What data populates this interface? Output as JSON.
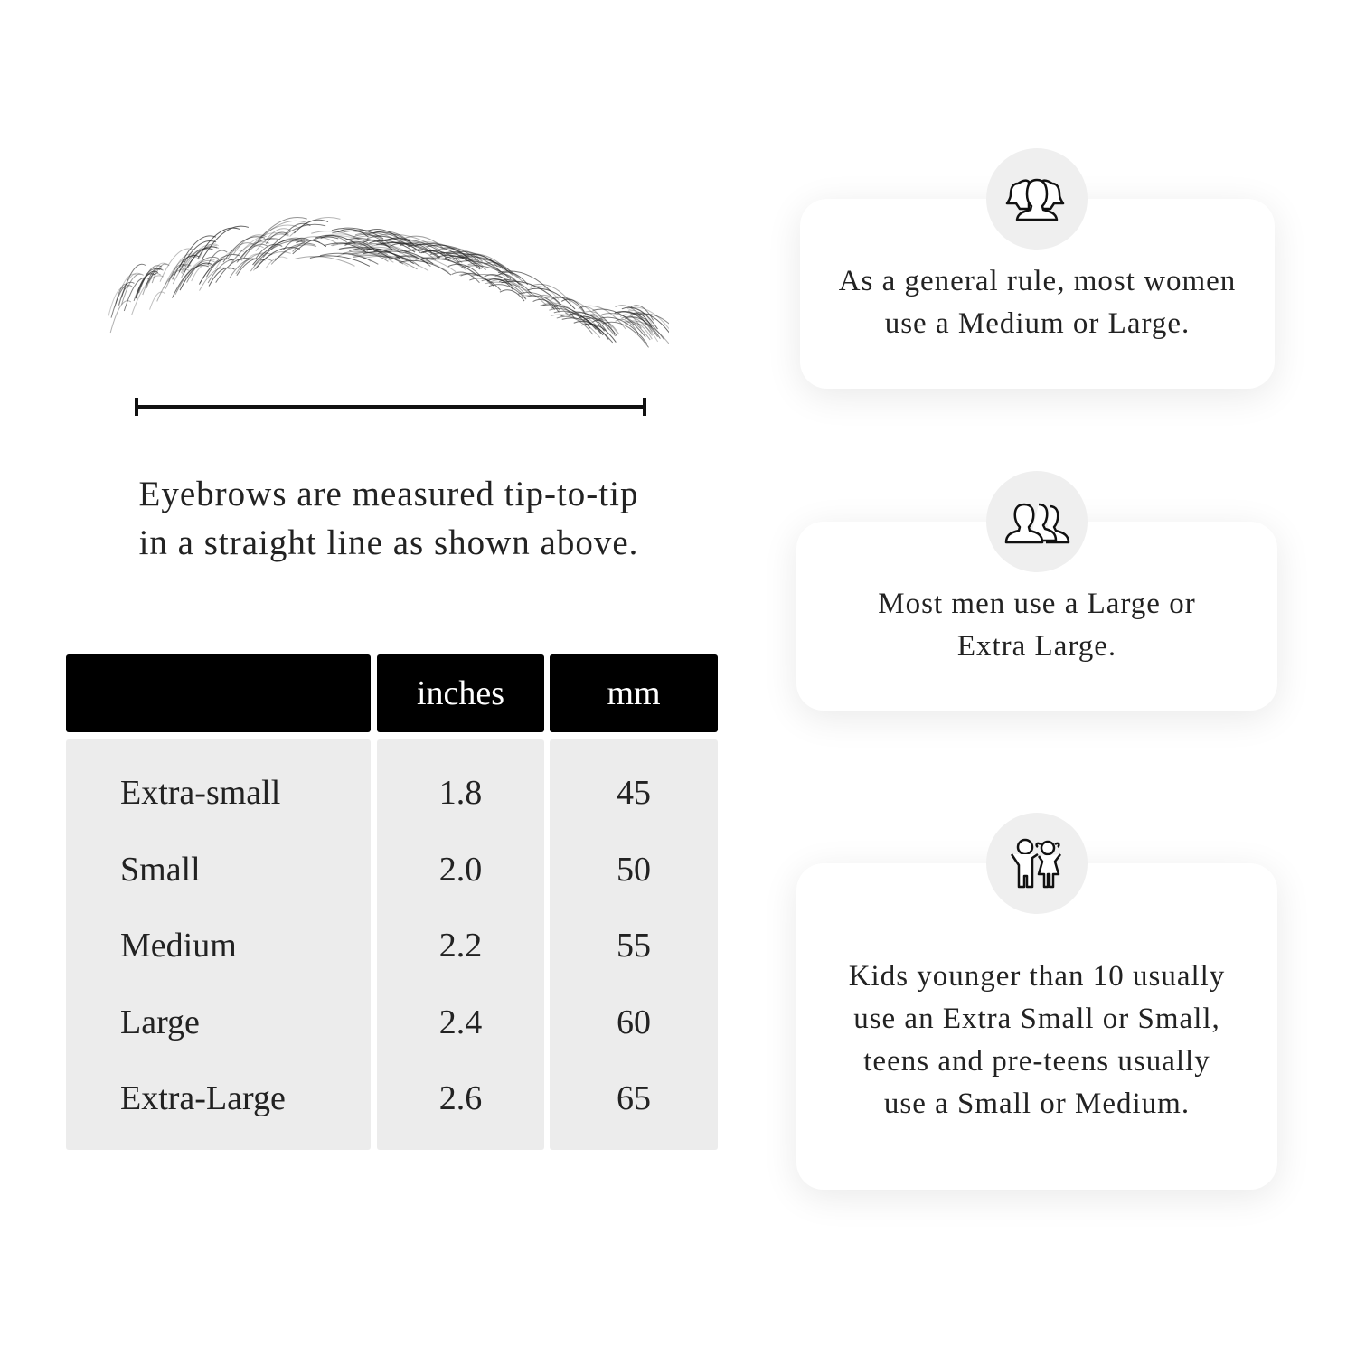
{
  "measurement": {
    "caption_line1": "Eyebrows are measured tip-to-tip",
    "caption_line2": "in a straight line as shown above."
  },
  "table": {
    "headers": [
      "",
      "inches",
      "mm"
    ],
    "rows": [
      {
        "size": "Extra-small",
        "inches": "1.8",
        "mm": "45"
      },
      {
        "size": "Small",
        "inches": "2.0",
        "mm": "50"
      },
      {
        "size": "Medium",
        "inches": "2.2",
        "mm": "55"
      },
      {
        "size": "Large",
        "inches": "2.4",
        "mm": "60"
      },
      {
        "size": "Extra-Large",
        "inches": "2.6",
        "mm": "65"
      }
    ]
  },
  "cards": [
    {
      "icon": "women-group-icon",
      "text": "As a general rule, most women use a Medium or Large."
    },
    {
      "icon": "men-group-icon",
      "text": "Most men use a Large or Extra Large."
    },
    {
      "icon": "kids-icon",
      "text": "Kids younger than 10 usually use an Extra Small or Small, teens and pre-teens usually use a Small or Medium."
    }
  ],
  "colors": {
    "header_bg": "#000000",
    "cell_bg": "#ececec",
    "icon_circle": "#efefef"
  }
}
